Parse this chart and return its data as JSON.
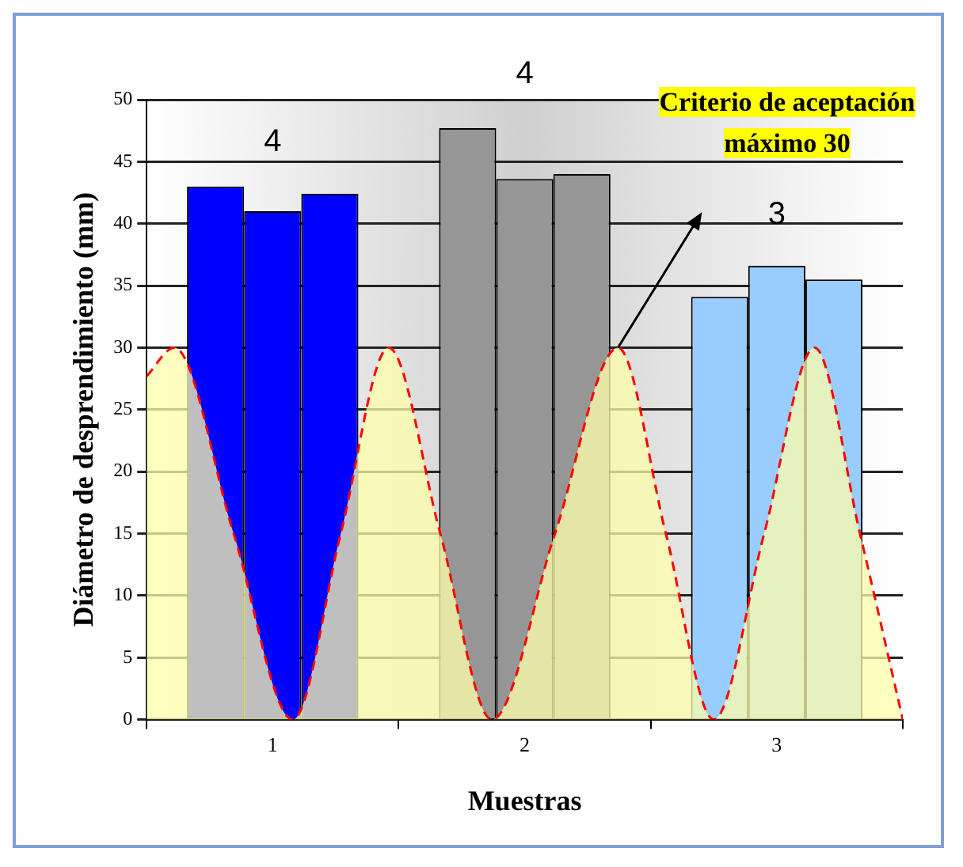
{
  "chart_data": {
    "type": "bar",
    "xlabel": "Muestras",
    "ylabel": "Diámetro de desprendimiento (mm)",
    "x": [
      0.5,
      1.5,
      2.5
    ],
    "series": [
      {
        "colors": [
          "#0000ff",
          "#969696",
          "#99ccff"
        ],
        "values": [
          43,
          47.7,
          34.1
        ]
      },
      {
        "colors": [
          "#0000ff",
          "#969696",
          "#99ccff"
        ],
        "values": [
          41,
          43.6,
          36.6
        ]
      },
      {
        "colors": [
          "#0000ff",
          "#969696",
          "#99ccff"
        ],
        "values": [
          42.4,
          44,
          35.5
        ]
      },
      {
        "type": "line",
        "color": "#ff0000",
        "line_style": "dashed",
        "marker": "none",
        "x": [
          0,
          0.11,
          0.345,
          0.58,
          0.77,
          0.96,
          1.165,
          1.37,
          1.62,
          1.87,
          2.06,
          2.25,
          2.45,
          2.65,
          2.83,
          3.0
        ],
        "values": [
          27.7,
          30,
          15,
          0,
          15,
          30,
          15,
          0,
          15,
          30,
          15,
          0,
          15,
          30,
          15,
          0
        ]
      }
    ],
    "xlim": [
      0,
      3
    ],
    "xticks": [
      {
        "value": 0,
        "label": null
      },
      {
        "value": 0.5,
        "label": "1"
      },
      {
        "value": 1,
        "label": null
      },
      {
        "value": 1.5,
        "label": "2"
      },
      {
        "value": 2,
        "label": null
      },
      {
        "value": 2.5,
        "label": "3"
      },
      {
        "value": 3,
        "label": null
      }
    ],
    "ylim": [
      0,
      50
    ],
    "yticks": [
      0,
      5,
      10,
      15,
      20,
      25,
      30,
      35,
      40,
      45,
      50
    ],
    "grid": "y",
    "legend": false,
    "annotations": [
      "4",
      "4",
      "3",
      "Criterio de aceptación máximo 30"
    ]
  }
}
